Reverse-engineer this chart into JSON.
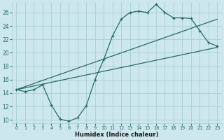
{
  "xlabel": "Humidex (Indice chaleur)",
  "ylabel": "",
  "bg_color": "#cce8ec",
  "grid_color": "#aacdd4",
  "line_color": "#2a6b60",
  "xlim": [
    -0.5,
    23.5
  ],
  "ylim": [
    9.5,
    27.5
  ],
  "xticks": [
    0,
    1,
    2,
    3,
    4,
    5,
    6,
    7,
    8,
    9,
    10,
    11,
    12,
    13,
    14,
    15,
    16,
    17,
    18,
    19,
    20,
    21,
    22,
    23
  ],
  "yticks": [
    10,
    12,
    14,
    16,
    18,
    20,
    22,
    24,
    26
  ],
  "curve1_x": [
    0,
    1,
    2,
    3,
    4,
    5,
    6,
    7,
    8,
    9,
    10,
    11,
    12,
    13,
    14,
    15,
    16,
    17,
    18,
    19,
    20,
    21,
    22,
    23
  ],
  "curve1_y": [
    14.5,
    14.2,
    14.5,
    15.2,
    12.2,
    10.1,
    9.8,
    10.3,
    12.1,
    16.0,
    19.0,
    22.5,
    25.0,
    26.0,
    26.2,
    26.0,
    27.2,
    26.0,
    25.2,
    25.2,
    25.1,
    23.3,
    21.5,
    21.0
  ],
  "curve2_x": [
    0,
    23
  ],
  "curve2_y": [
    14.5,
    25.0
  ],
  "curve3_x": [
    0,
    23
  ],
  "curve3_y": [
    14.5,
    20.8
  ]
}
